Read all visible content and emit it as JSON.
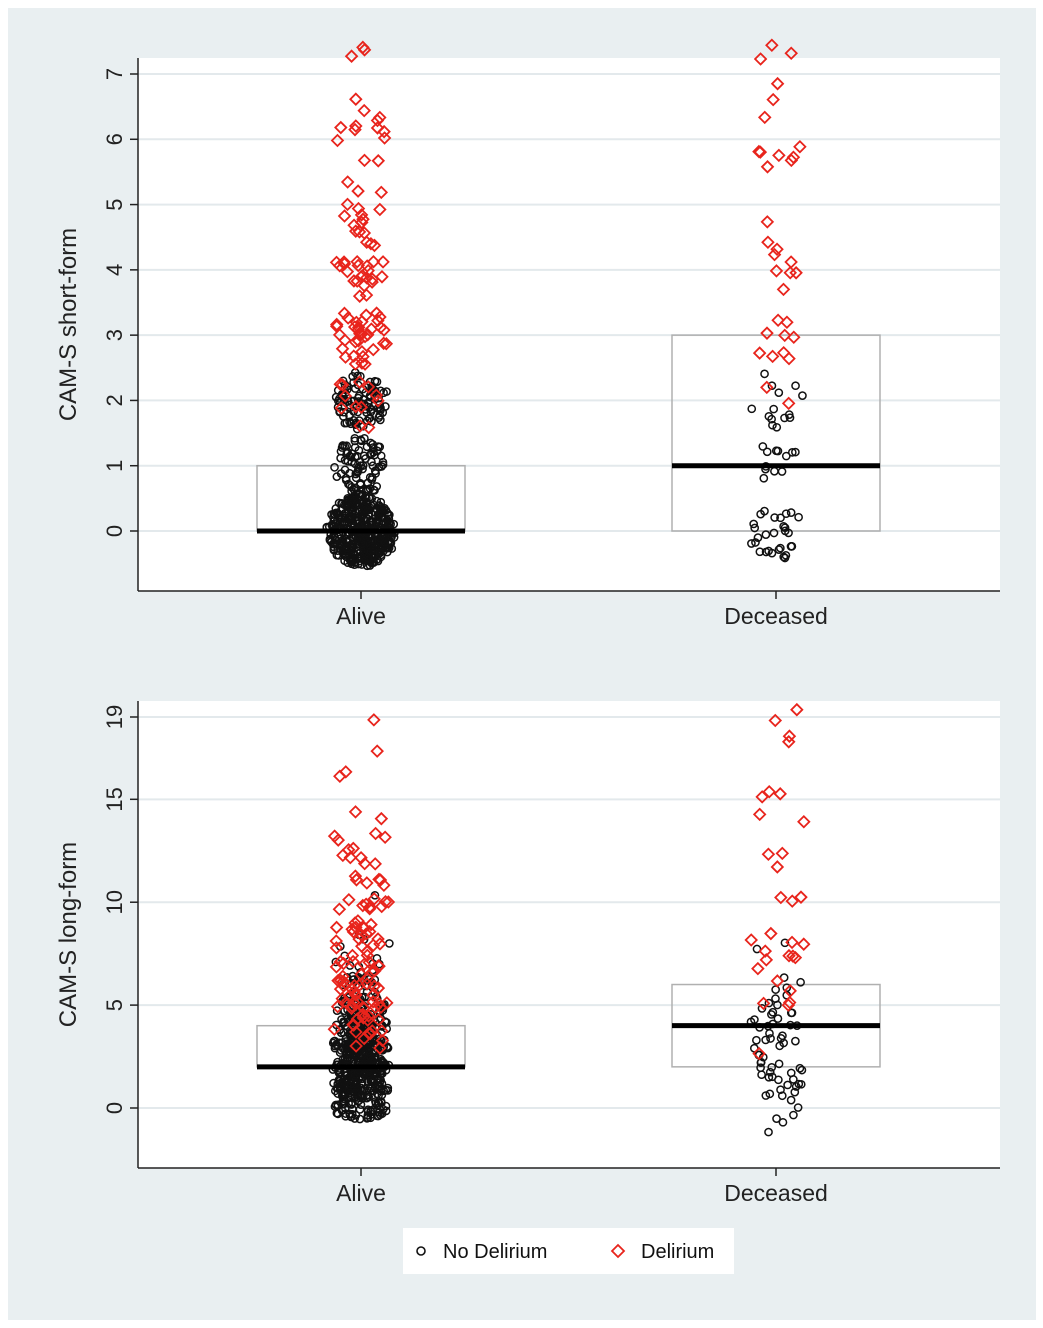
{
  "colors": {
    "background": "#e9eff1",
    "plot_area": "#ffffff",
    "grid": "#e3e9ec",
    "no_delirium": "#111111",
    "delirium": "#e8241c",
    "median_line": "#000000",
    "box_outline": "#b0b0b0"
  },
  "legend": {
    "items": [
      {
        "label": "No Delirium",
        "marker": "hollow-circle",
        "color": "#111111"
      },
      {
        "label": "Delirium",
        "marker": "hollow-diamond",
        "color": "#e8241c"
      }
    ],
    "placement": "bottom-center"
  },
  "chart_data": [
    {
      "type": "scatter",
      "subtype": "jittered strip plot with box (IQR) and median",
      "ylabel": "CAM-S short-form",
      "xlabel": "",
      "categories": [
        "Alive",
        "Deceased"
      ],
      "yticks": [
        0,
        1,
        2,
        3,
        4,
        5,
        6,
        7
      ],
      "ylim": [
        -1.3,
        7
      ],
      "grid": true,
      "boxes": [
        {
          "category": "Alive",
          "q1": 0,
          "median": 0,
          "q3": 1
        },
        {
          "category": "Deceased",
          "q1": 0,
          "median": 1,
          "q3": 3
        }
      ],
      "series": [
        {
          "name": "No Delirium",
          "groups": [
            {
              "category": "Alive",
              "clusters": [
                {
                  "value": 0,
                  "count": 450
                },
                {
                  "value": 1,
                  "count": 90
                },
                {
                  "value": 2,
                  "count": 95
                }
              ]
            },
            {
              "category": "Deceased",
              "clusters": [
                {
                  "value": 0,
                  "count": 30
                },
                {
                  "value": 1,
                  "count": 12
                },
                {
                  "value": 2,
                  "count": 14
                }
              ]
            }
          ]
        },
        {
          "name": "Delirium",
          "groups": [
            {
              "category": "Alive",
              "clusters": [
                {
                  "value": 2,
                  "count": 12
                },
                {
                  "value": 3,
                  "count": 35
                },
                {
                  "value": 4,
                  "count": 25
                },
                {
                  "value": 5,
                  "count": 14
                },
                {
                  "value": 6,
                  "count": 12
                },
                {
                  "value": 7,
                  "count": 4
                }
              ]
            },
            {
              "category": "Deceased",
              "clusters": [
                {
                  "value": 2,
                  "count": 2
                },
                {
                  "value": 3,
                  "count": 9
                },
                {
                  "value": 4,
                  "count": 8
                },
                {
                  "value": 5,
                  "count": 1
                },
                {
                  "value": 6,
                  "count": 8
                },
                {
                  "value": 7,
                  "count": 5
                }
              ]
            }
          ]
        }
      ]
    },
    {
      "type": "scatter",
      "subtype": "jittered strip plot with box (IQR) and median",
      "ylabel": "CAM-S long-form",
      "xlabel": "",
      "categories": [
        "Alive",
        "Deceased"
      ],
      "yticks": [
        0,
        5,
        10,
        15,
        19
      ],
      "ylim": [
        -2.8,
        19
      ],
      "grid": true,
      "boxes": [
        {
          "category": "Alive",
          "q1": 2,
          "median": 2,
          "q3": 4
        },
        {
          "category": "Deceased",
          "q1": 2,
          "median": 4,
          "q3": 6
        }
      ],
      "series": [
        {
          "name": "No Delirium",
          "groups": [
            {
              "category": "Alive",
              "clusters": [
                {
                  "value": 0,
                  "count": 60
                },
                {
                  "value": 1,
                  "count": 110
                },
                {
                  "value": 2,
                  "count": 130
                },
                {
                  "value": 3,
                  "count": 110
                },
                {
                  "value": 4,
                  "count": 80
                },
                {
                  "value": 5,
                  "count": 45
                },
                {
                  "value": 6,
                  "count": 18
                },
                {
                  "value": 7,
                  "count": 10
                },
                {
                  "value": 8,
                  "count": 4
                },
                {
                  "value": 10,
                  "count": 1
                }
              ]
            },
            {
              "category": "Deceased",
              "clusters": [
                {
                  "value": -1,
                  "count": 2
                },
                {
                  "value": 0,
                  "count": 4
                },
                {
                  "value": 1,
                  "count": 12
                },
                {
                  "value": 2,
                  "count": 12
                },
                {
                  "value": 3,
                  "count": 10
                },
                {
                  "value": 4,
                  "count": 10
                },
                {
                  "value": 5,
                  "count": 9
                },
                {
                  "value": 6,
                  "count": 4
                },
                {
                  "value": 8,
                  "count": 2
                }
              ]
            }
          ]
        },
        {
          "name": "Delirium",
          "groups": [
            {
              "category": "Alive",
              "clusters": [
                {
                  "value": 3,
                  "count": 4
                },
                {
                  "value": 4,
                  "count": 14
                },
                {
                  "value": 5,
                  "count": 18
                },
                {
                  "value": 6,
                  "count": 16
                },
                {
                  "value": 7,
                  "count": 12
                },
                {
                  "value": 8,
                  "count": 10
                },
                {
                  "value": 9,
                  "count": 10
                },
                {
                  "value": 10,
                  "count": 10
                },
                {
                  "value": 11,
                  "count": 6
                },
                {
                  "value": 12,
                  "count": 5
                },
                {
                  "value": 13,
                  "count": 6
                },
                {
                  "value": 14,
                  "count": 2
                },
                {
                  "value": 16,
                  "count": 2
                },
                {
                  "value": 17,
                  "count": 1
                },
                {
                  "value": 19,
                  "count": 1
                }
              ]
            },
            {
              "category": "Deceased",
              "clusters": [
                {
                  "value": 3,
                  "count": 1
                },
                {
                  "value": 5,
                  "count": 3
                },
                {
                  "value": 6,
                  "count": 2
                },
                {
                  "value": 7,
                  "count": 5
                },
                {
                  "value": 8,
                  "count": 5
                },
                {
                  "value": 10,
                  "count": 3
                },
                {
                  "value": 12,
                  "count": 3
                },
                {
                  "value": 14,
                  "count": 2
                },
                {
                  "value": 15,
                  "count": 3
                },
                {
                  "value": 18,
                  "count": 2
                },
                {
                  "value": 19,
                  "count": 2
                }
              ]
            }
          ]
        }
      ]
    }
  ]
}
